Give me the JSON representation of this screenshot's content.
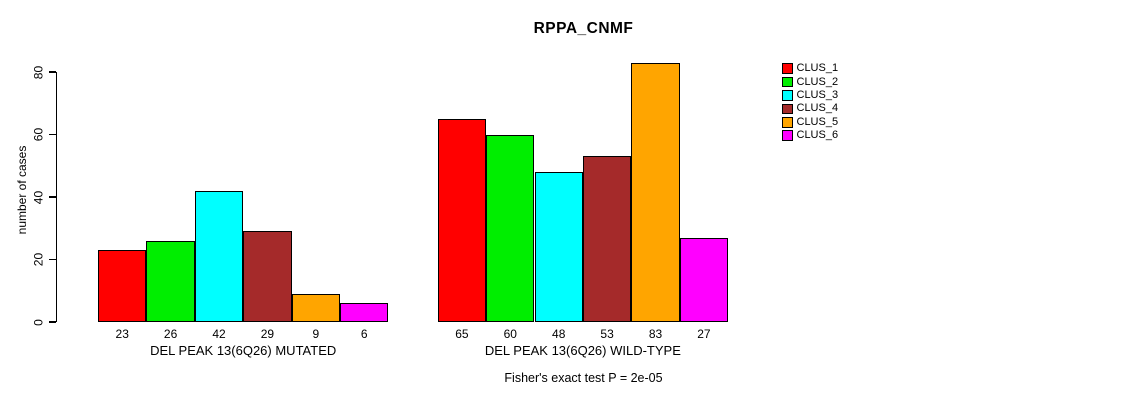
{
  "title": "RPPA_CNMF",
  "chart_data": {
    "type": "bar",
    "title": "RPPA_CNMF",
    "xlabel": "",
    "ylabel": "number of cases",
    "ylim": [
      0,
      80
    ],
    "yticks": [
      0,
      20,
      40,
      60,
      80
    ],
    "grid": false,
    "grouping": "grouped",
    "bar_value_labels_shown": true,
    "legend_position": "right",
    "categories": [
      "DEL PEAK 13(6Q26) MUTATED",
      "DEL PEAK 13(6Q26) WILD-TYPE"
    ],
    "series": [
      {
        "name": "CLUS_1",
        "color": "#FF0000",
        "values": [
          23,
          65
        ]
      },
      {
        "name": "CLUS_2",
        "color": "#00EE00",
        "values": [
          26,
          60
        ]
      },
      {
        "name": "CLUS_3",
        "color": "#00FFFF",
        "values": [
          42,
          48
        ]
      },
      {
        "name": "CLUS_4",
        "color": "#A52A2A",
        "values": [
          29,
          53
        ]
      },
      {
        "name": "CLUS_5",
        "color": "#FFA500",
        "values": [
          9,
          83
        ]
      },
      {
        "name": "CLUS_6",
        "color": "#FF00FF",
        "values": [
          6,
          27
        ]
      }
    ],
    "bar_outline_color": "#000000",
    "annotation": "Fisher's exact test P = 2e-05"
  }
}
